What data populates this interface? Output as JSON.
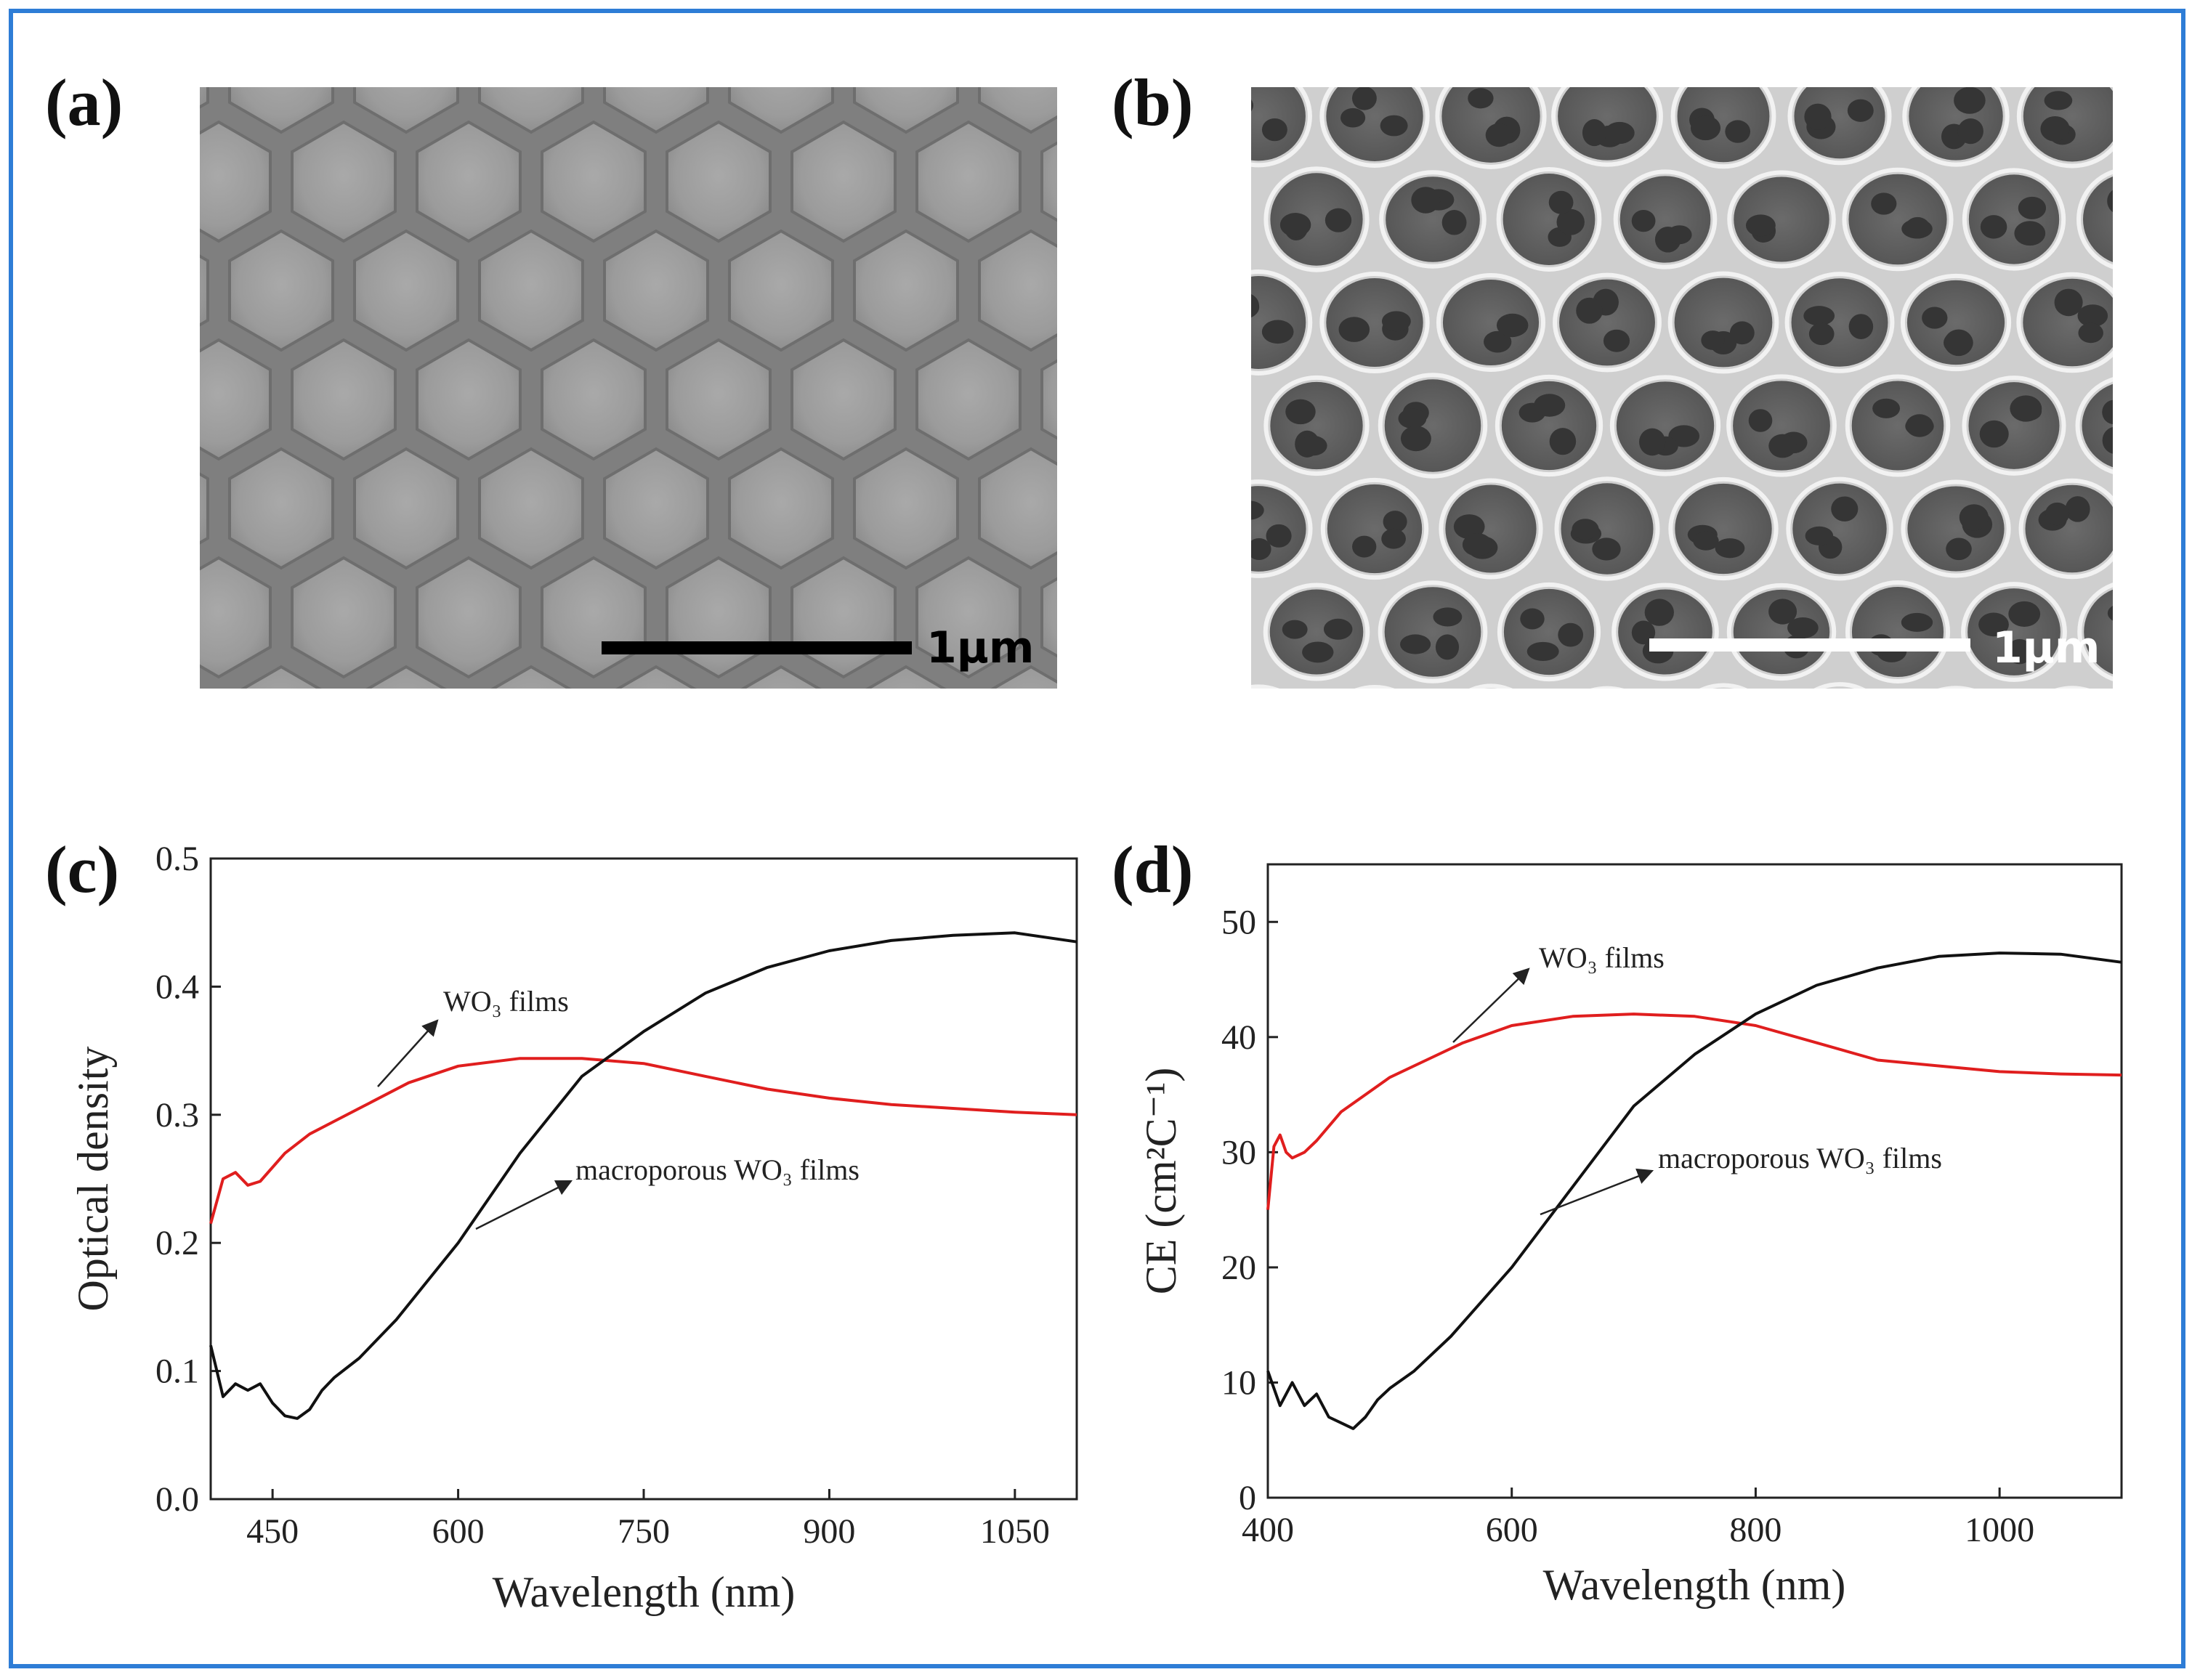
{
  "figure": {
    "frame_color": "#2e7dd6",
    "panels": {
      "a": {
        "label": "(a)",
        "kind": "SEM micrograph of close-packed colloidal spheres",
        "scale_bar": "1μm"
      },
      "b": {
        "label": "(b)",
        "kind": "SEM micrograph of macroporous WO3 film",
        "scale_bar": "1μm"
      },
      "c": {
        "label": "(c)"
      },
      "d": {
        "label": "(d)"
      }
    }
  },
  "chart_data": [
    {
      "panel": "c",
      "type": "line",
      "xlabel": "Wavelength (nm)",
      "ylabel": "Optical density",
      "xlim": [
        400,
        1100
      ],
      "ylim": [
        0.0,
        0.5
      ],
      "xticks": [
        450,
        600,
        750,
        900,
        1050
      ],
      "yticks": [
        0.0,
        0.1,
        0.2,
        0.3,
        0.4,
        0.5
      ],
      "tick_labels_x": [
        "450",
        "600",
        "750",
        "900",
        "1050"
      ],
      "tick_labels_y": [
        "0.0",
        "0.1",
        "0.2",
        "0.3",
        "0.4",
        "0.5"
      ],
      "series": [
        {
          "name": "WO₃ films",
          "color": "#e01e1e",
          "x": [
            400,
            410,
            420,
            430,
            440,
            460,
            480,
            500,
            530,
            560,
            600,
            650,
            700,
            750,
            800,
            850,
            900,
            950,
            1000,
            1050,
            1100
          ],
          "y": [
            0.215,
            0.25,
            0.255,
            0.245,
            0.248,
            0.27,
            0.285,
            0.295,
            0.31,
            0.325,
            0.338,
            0.344,
            0.344,
            0.34,
            0.33,
            0.32,
            0.313,
            0.308,
            0.305,
            0.302,
            0.3
          ]
        },
        {
          "name": "macroporous WO₃ films",
          "color": "#111111",
          "x": [
            400,
            410,
            420,
            430,
            440,
            450,
            460,
            470,
            480,
            490,
            500,
            520,
            550,
            600,
            650,
            700,
            750,
            800,
            850,
            900,
            950,
            1000,
            1050,
            1100
          ],
          "y": [
            0.12,
            0.08,
            0.09,
            0.085,
            0.09,
            0.075,
            0.065,
            0.063,
            0.07,
            0.085,
            0.095,
            0.11,
            0.14,
            0.2,
            0.27,
            0.33,
            0.365,
            0.395,
            0.415,
            0.428,
            0.436,
            0.44,
            0.442,
            0.435
          ]
        }
      ],
      "annotations": [
        {
          "text": "WO₃ films",
          "target": "WO₃ films"
        },
        {
          "text": "macroporous WO₃ films",
          "target": "macroporous WO₃ films"
        }
      ]
    },
    {
      "panel": "d",
      "type": "line",
      "xlabel": "Wavelength (nm)",
      "ylabel": "CE (cm²C⁻¹)",
      "xlim": [
        400,
        1100
      ],
      "ylim": [
        0,
        55
      ],
      "xticks": [
        400,
        600,
        800,
        1000
      ],
      "yticks": [
        0,
        10,
        20,
        30,
        40,
        50
      ],
      "tick_labels_x": [
        "400",
        "600",
        "800",
        "1000"
      ],
      "tick_labels_y": [
        "0",
        "10",
        "20",
        "30",
        "40",
        "50"
      ],
      "series": [
        {
          "name": "WO₃ films",
          "color": "#e01e1e",
          "x": [
            400,
            405,
            410,
            415,
            420,
            430,
            440,
            460,
            480,
            500,
            530,
            560,
            600,
            650,
            700,
            750,
            800,
            850,
            900,
            950,
            1000,
            1050,
            1100
          ],
          "y": [
            25.0,
            30.5,
            31.5,
            30.0,
            29.5,
            30.0,
            31.0,
            33.5,
            35.0,
            36.5,
            38.0,
            39.5,
            41.0,
            41.8,
            42.0,
            41.8,
            41.0,
            39.5,
            38.0,
            37.5,
            37.0,
            36.8,
            36.7
          ]
        },
        {
          "name": "macroporous WO₃ films",
          "color": "#111111",
          "x": [
            400,
            410,
            420,
            430,
            440,
            450,
            460,
            470,
            480,
            490,
            500,
            520,
            550,
            600,
            650,
            700,
            750,
            800,
            850,
            900,
            950,
            1000,
            1050,
            1100
          ],
          "y": [
            11.0,
            8.0,
            10.0,
            8.0,
            9.0,
            7.0,
            6.5,
            6.0,
            7.0,
            8.5,
            9.5,
            11.0,
            14.0,
            20.0,
            27.0,
            34.0,
            38.5,
            42.0,
            44.5,
            46.0,
            47.0,
            47.3,
            47.2,
            46.5
          ]
        }
      ],
      "annotations": [
        {
          "text": "WO₃ films",
          "target": "WO₃ films"
        },
        {
          "text": "macroporous WO₃ films",
          "target": "macroporous WO₃ films"
        }
      ]
    }
  ]
}
